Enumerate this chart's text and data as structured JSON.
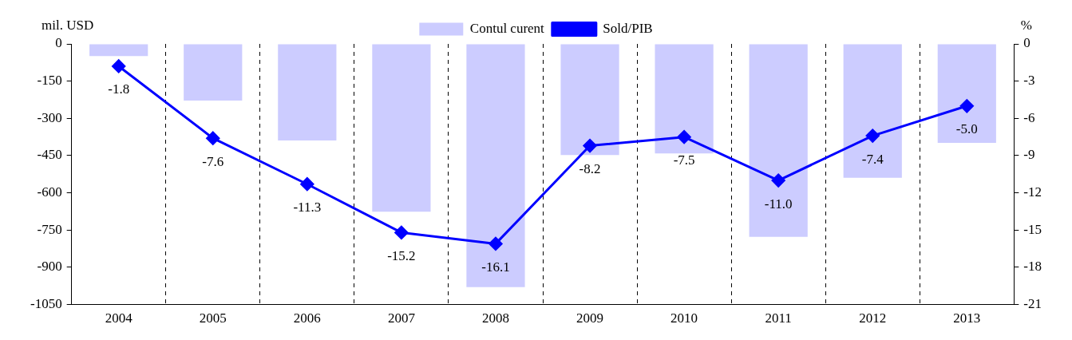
{
  "chart_data": {
    "type": "bar",
    "categories": [
      "2004",
      "2005",
      "2006",
      "2007",
      "2008",
      "2009",
      "2010",
      "2011",
      "2012",
      "2013"
    ],
    "ylabel": "mil. USD",
    "y2label": "%",
    "series": [
      {
        "name": "Contul curent",
        "color": "#ccccff",
        "values": [
          -49,
          -228,
          -389,
          -676,
          -980,
          -448,
          -441,
          -777,
          -539,
          -399
        ]
      },
      {
        "name": "Sold/PIB",
        "type": "line",
        "axis": "y2",
        "color": "#0000ff",
        "marker": "diamond",
        "values": [
          -1.8,
          -7.6,
          -11.3,
          -15.2,
          -16.1,
          -8.2,
          -7.5,
          -11.0,
          -7.4,
          -5.0
        ],
        "value_labels": [
          "-1.8",
          "-7.6",
          "-11.3",
          "-15.2",
          "-16.1",
          "-8.2",
          "-7.5",
          "-11.0",
          "-7.4",
          "-5.0"
        ]
      }
    ],
    "ylim": [
      -1050,
      0
    ],
    "yticks": [
      -1050,
      -900,
      -750,
      -600,
      -450,
      -300,
      -150,
      0
    ],
    "y2lim": [
      -21,
      0
    ],
    "y2ticks": [
      -21,
      -18,
      -15,
      -12,
      -9,
      -6,
      -3,
      0
    ],
    "grid": "x",
    "legend": "top"
  }
}
